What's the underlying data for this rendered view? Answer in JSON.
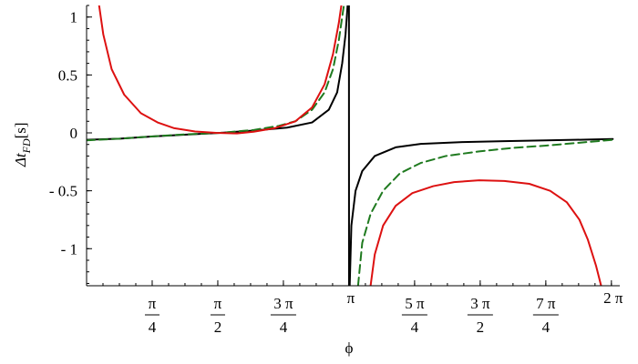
{
  "chart_data": {
    "type": "line",
    "title": "",
    "xlabel": "ϕ",
    "ylabel": {
      "prefix": "Δt",
      "subscript": "FD",
      "unit": "[s]"
    },
    "xlim": [
      0,
      6.3832
    ],
    "ylim": [
      -1.32,
      1.1
    ],
    "x_ticks": [
      {
        "value": 0.7854,
        "num": "π",
        "den": "4"
      },
      {
        "value": 1.5708,
        "num": "π",
        "den": "2"
      },
      {
        "value": 2.3562,
        "num": "3 π",
        "den": "4"
      },
      {
        "value": 3.1416,
        "label": "π"
      },
      {
        "value": 3.927,
        "num": "5 π",
        "den": "4"
      },
      {
        "value": 4.7124,
        "num": "3 π",
        "den": "2"
      },
      {
        "value": 5.4978,
        "num": "7 π",
        "den": "4"
      },
      {
        "value": 6.2832,
        "label": "2 π"
      }
    ],
    "y_ticks": [
      {
        "value": 1,
        "label": "1"
      },
      {
        "value": 0.5,
        "label": "0.5"
      },
      {
        "value": 0,
        "label": "0"
      },
      {
        "value": -0.5,
        "label": "- 0.5"
      },
      {
        "value": -1,
        "label": "- 1"
      }
    ],
    "grid": false,
    "series": [
      {
        "color": "#000000",
        "style": "solid",
        "points": [
          [
            0.0,
            -0.06
          ],
          [
            0.4,
            -0.05
          ],
          [
            0.8,
            -0.03
          ],
          [
            1.2,
            -0.015
          ],
          [
            1.6,
            0.0
          ],
          [
            2.0,
            0.02
          ],
          [
            2.4,
            0.045
          ],
          [
            2.7,
            0.09
          ],
          [
            2.9,
            0.2
          ],
          [
            3.0,
            0.35
          ],
          [
            3.06,
            0.6
          ],
          [
            3.1,
            0.85
          ],
          [
            3.125,
            1.1
          ]
        ]
      },
      {
        "color": "#000000",
        "style": "solid",
        "points": [
          [
            3.141,
            1.1
          ],
          [
            3.142,
            -1.32
          ]
        ]
      },
      {
        "color": "#000000",
        "style": "solid",
        "points": [
          [
            3.15,
            -1.32
          ],
          [
            3.17,
            -0.8
          ],
          [
            3.22,
            -0.5
          ],
          [
            3.3,
            -0.33
          ],
          [
            3.45,
            -0.2
          ],
          [
            3.7,
            -0.125
          ],
          [
            4.0,
            -0.095
          ],
          [
            4.5,
            -0.08
          ],
          [
            5.0,
            -0.072
          ],
          [
            5.5,
            -0.065
          ],
          [
            6.0,
            -0.058
          ],
          [
            6.3,
            -0.053
          ]
        ]
      },
      {
        "color": "#1f7a1f",
        "style": "dashed",
        "points": [
          [
            0.0,
            -0.065
          ],
          [
            0.4,
            -0.05
          ],
          [
            0.8,
            -0.03
          ],
          [
            1.2,
            -0.012
          ],
          [
            1.6,
            0.0
          ],
          [
            2.0,
            0.025
          ],
          [
            2.3,
            0.06
          ],
          [
            2.5,
            0.1
          ],
          [
            2.7,
            0.2
          ],
          [
            2.85,
            0.35
          ],
          [
            2.95,
            0.55
          ],
          [
            3.02,
            0.8
          ],
          [
            3.08,
            1.1
          ]
        ]
      },
      {
        "color": "#1f7a1f",
        "style": "dashed",
        "points": [
          [
            3.25,
            -1.32
          ],
          [
            3.3,
            -0.95
          ],
          [
            3.4,
            -0.7
          ],
          [
            3.55,
            -0.5
          ],
          [
            3.75,
            -0.35
          ],
          [
            4.0,
            -0.26
          ],
          [
            4.3,
            -0.2
          ],
          [
            4.7,
            -0.16
          ],
          [
            5.1,
            -0.13
          ],
          [
            5.5,
            -0.11
          ],
          [
            5.9,
            -0.085
          ],
          [
            6.3,
            -0.06
          ]
        ]
      },
      {
        "color": "#dd1111",
        "style": "solid",
        "points": [
          [
            0.15,
            1.1
          ],
          [
            0.2,
            0.85
          ],
          [
            0.3,
            0.55
          ],
          [
            0.45,
            0.33
          ],
          [
            0.65,
            0.17
          ],
          [
            0.85,
            0.09
          ],
          [
            1.05,
            0.04
          ],
          [
            1.3,
            0.012
          ],
          [
            1.55,
            0.0
          ],
          [
            1.8,
            -0.005
          ],
          [
            2.0,
            0.01
          ],
          [
            2.25,
            0.04
          ],
          [
            2.5,
            0.1
          ],
          [
            2.7,
            0.22
          ],
          [
            2.85,
            0.42
          ],
          [
            2.95,
            0.68
          ],
          [
            3.02,
            0.95
          ],
          [
            3.05,
            1.1
          ]
        ]
      },
      {
        "color": "#dd1111",
        "style": "solid",
        "points": [
          [
            3.4,
            -1.32
          ],
          [
            3.45,
            -1.05
          ],
          [
            3.55,
            -0.8
          ],
          [
            3.7,
            -0.63
          ],
          [
            3.9,
            -0.52
          ],
          [
            4.15,
            -0.46
          ],
          [
            4.4,
            -0.425
          ],
          [
            4.7,
            -0.41
          ],
          [
            5.0,
            -0.415
          ],
          [
            5.3,
            -0.44
          ],
          [
            5.55,
            -0.5
          ],
          [
            5.75,
            -0.6
          ],
          [
            5.9,
            -0.75
          ],
          [
            6.0,
            -0.92
          ],
          [
            6.1,
            -1.15
          ],
          [
            6.16,
            -1.32
          ]
        ]
      }
    ]
  }
}
